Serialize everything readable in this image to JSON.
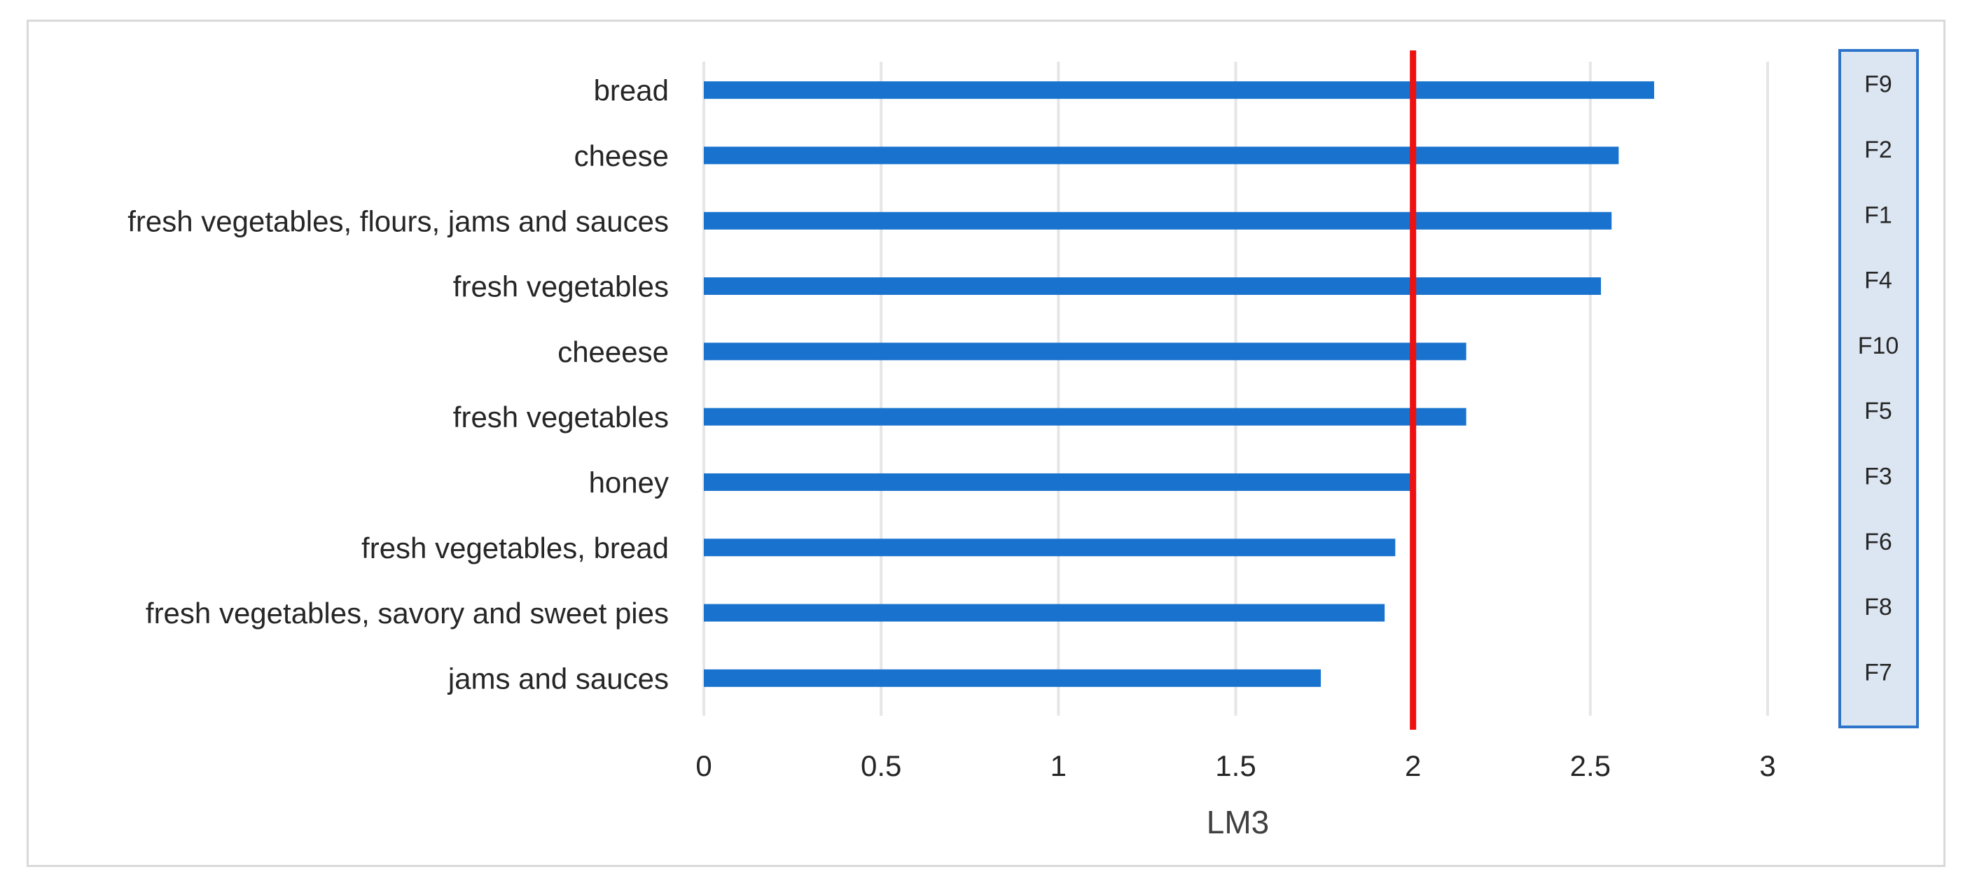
{
  "chart_data": {
    "type": "bar",
    "orientation": "horizontal",
    "categories": [
      "bread",
      "cheese",
      "fresh vegetables, flours, jams and sauces",
      "fresh vegetables",
      "cheeese",
      "fresh vegetables",
      "honey",
      "fresh vegetables, bread",
      "fresh vegetables, savory and sweet pies",
      "jams and sauces"
    ],
    "values": [
      2.68,
      2.58,
      2.56,
      2.53,
      2.15,
      2.15,
      2.0,
      1.95,
      1.92,
      1.74
    ],
    "factor_labels": [
      "F9",
      "F2",
      "F1",
      "F4",
      "F10",
      "F5",
      "F3",
      "F6",
      "F8",
      "F7"
    ],
    "xlabel": "LM3",
    "xlim": [
      0,
      3
    ],
    "xticks": [
      "0",
      "0.5",
      "1",
      "1.5",
      "2",
      "2.5",
      "3"
    ],
    "xtick_values": [
      0,
      0.5,
      1,
      1.5,
      2,
      2.5,
      3
    ],
    "reference_line": 2,
    "grid": "vertical",
    "legend": "none",
    "colors": {
      "bar": "#1872CE",
      "reference_line": "#EE1111",
      "grid": "#e6e6e6",
      "factor_box_fill": "#DCE6F2",
      "factor_box_border": "#2E75C9"
    }
  }
}
